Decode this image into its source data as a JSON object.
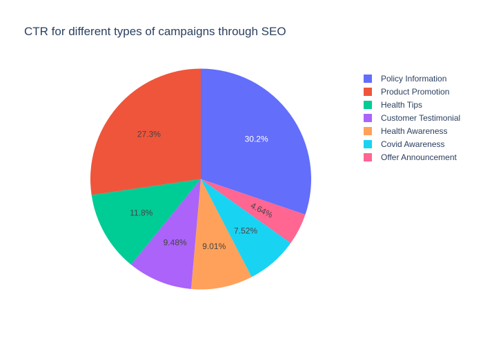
{
  "chart_data": {
    "type": "pie",
    "title": "CTR for different types of campaigns through SEO",
    "legend_position": "right",
    "slices": [
      {
        "label": "Policy Information",
        "value": 30.2,
        "text": "30.2%",
        "color": "#636efa",
        "text_color": "#ffffff"
      },
      {
        "label": "Offer Announcement",
        "value": 4.64,
        "text": "4.64%",
        "color": "#ff6692",
        "text_color": "#444444"
      },
      {
        "label": "Covid Awareness",
        "value": 7.52,
        "text": "7.52%",
        "color": "#19d3f3",
        "text_color": "#444444"
      },
      {
        "label": "Health Awareness",
        "value": 9.01,
        "text": "9.01%",
        "color": "#ffa15a",
        "text_color": "#444444"
      },
      {
        "label": "Customer Testimonial",
        "value": 9.48,
        "text": "9.48%",
        "color": "#ab63fa",
        "text_color": "#444444"
      },
      {
        "label": "Health Tips",
        "value": 11.8,
        "text": "11.8%",
        "color": "#00cc96",
        "text_color": "#444444"
      },
      {
        "label": "Product Promotion",
        "value": 27.3,
        "text": "27.3%",
        "color": "#ef553b",
        "text_color": "#444444"
      }
    ],
    "legend_order": [
      "Policy Information",
      "Product Promotion",
      "Health Tips",
      "Customer Testimonial",
      "Health Awareness",
      "Covid Awareness",
      "Offer Announcement"
    ]
  }
}
